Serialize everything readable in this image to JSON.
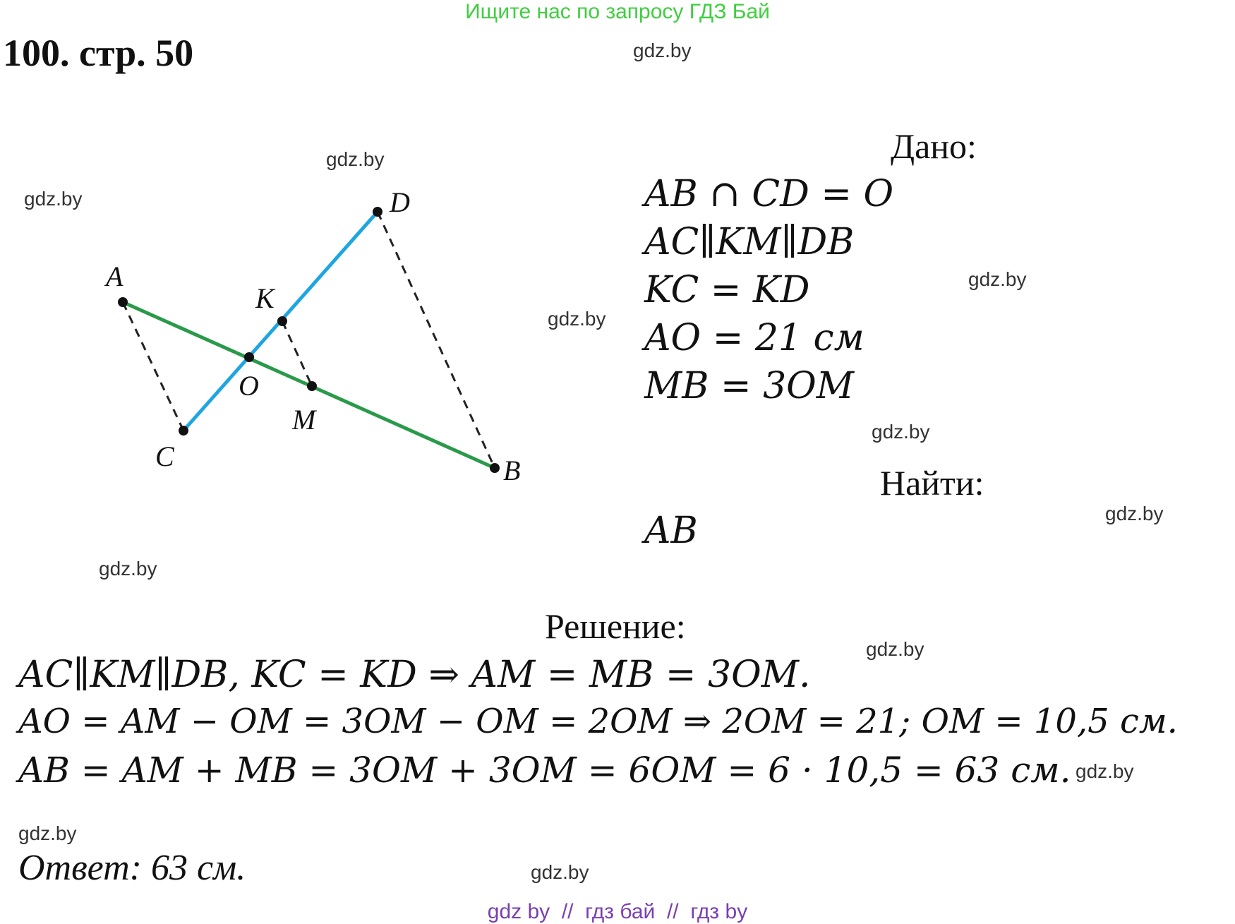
{
  "banner": "Ищите нас по запросу ГДЗ Бай",
  "title": "100. стр. 50",
  "watermark": "gdz.by",
  "given": {
    "header": "Дано:",
    "lines": [
      "AB ∩ CD = O",
      "AC∥KM∥DB",
      "KC = KD",
      "AO = 21 см",
      "MB = 3OM"
    ]
  },
  "find": {
    "header": "Найти:",
    "value": "AB"
  },
  "solution": {
    "header": "Решение:",
    "lines": [
      "AC∥KM∥DB, KC = KD ⇒ AM = MB = 3OM.",
      "AO = AM − OM = 3OM − OM = 2OM ⇒ 2OM = 21; OM = 10,5 см.",
      "AB = AM + MB = 3OM + 3OM = 6OM = 6 · 10,5 = 63 см."
    ]
  },
  "answer": "Ответ: 63 см.",
  "footer": "gdz by  //  гдз бай  //  гдз by",
  "figure": {
    "points": [
      "A",
      "B",
      "C",
      "D",
      "K",
      "M",
      "O"
    ],
    "colors": {
      "AB": "#2a9a4a",
      "CD": "#1ea6e0",
      "dashed": "#222222"
    }
  }
}
